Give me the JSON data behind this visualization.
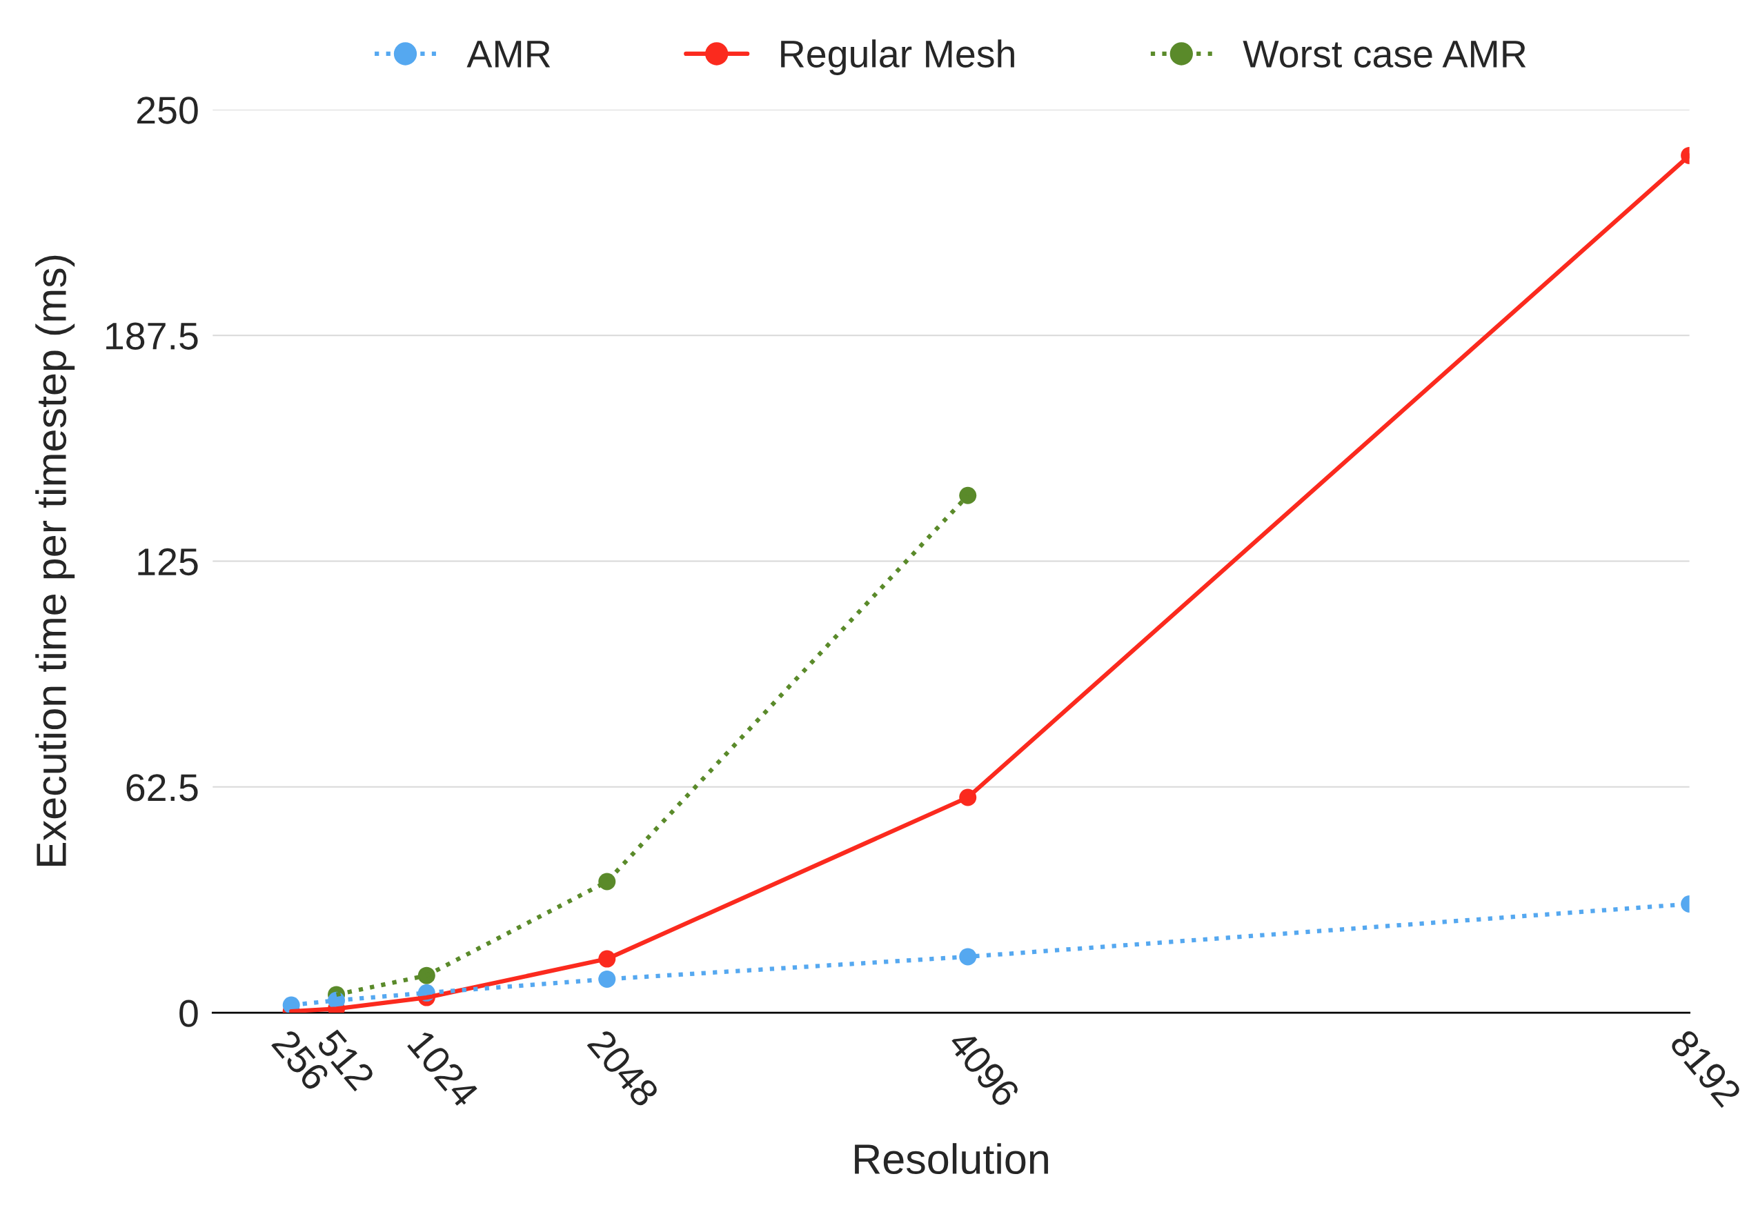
{
  "chart_data": {
    "type": "line",
    "xlabel": "Resolution",
    "ylabel": "Execution time per timestep (ms)",
    "xlim": [
      -190,
      8192
    ],
    "xticks": [
      256,
      512,
      1024,
      2048,
      4096,
      8192
    ],
    "ylim": [
      0,
      250
    ],
    "yticks": [
      0,
      62.5,
      125,
      187.5,
      250
    ],
    "grid": "y",
    "legend": "top",
    "marker": "circle",
    "x": [
      256,
      512,
      1024,
      2048,
      4096,
      8192
    ],
    "series": [
      {
        "name": "AMR",
        "color": "#55a8f0",
        "line_style": "dotted",
        "values": [
          2.1,
          3.4,
          5.5,
          9.3,
          15.5,
          30.1
        ]
      },
      {
        "name": "Regular Mesh",
        "color": "#fb2a1e",
        "line_style": "solid",
        "values": [
          0.4,
          1.1,
          4.2,
          14.9,
          59.6,
          237.3
        ]
      },
      {
        "name": "Worst case AMR",
        "color": "#5a8a2a",
        "line_style": "dotted",
        "values": [
          null,
          5.0,
          10.3,
          36.3,
          143.2,
          null
        ]
      }
    ]
  }
}
